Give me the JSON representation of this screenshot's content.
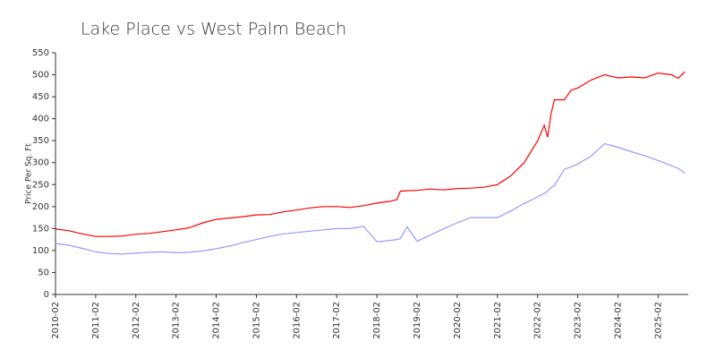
{
  "chart_data": {
    "type": "line",
    "title": "Lake Place vs West Palm Beach",
    "y_label": "Price Per Sq. Ft",
    "x": [
      "2010-02",
      "2010-06",
      "2010-10",
      "2011-02",
      "2011-06",
      "2011-10",
      "2012-02",
      "2012-06",
      "2012-10",
      "2013-02",
      "2013-06",
      "2013-10",
      "2014-02",
      "2014-06",
      "2014-10",
      "2015-02",
      "2015-06",
      "2015-10",
      "2016-02",
      "2016-06",
      "2016-10",
      "2017-02",
      "2017-06",
      "2017-10",
      "2018-02",
      "2018-06",
      "2018-08",
      "2018-09",
      "2018-11",
      "2019-02",
      "2019-06",
      "2019-10",
      "2020-02",
      "2020-06",
      "2020-10",
      "2021-02",
      "2021-06",
      "2021-10",
      "2022-02",
      "2022-04",
      "2022-05",
      "2022-06",
      "2022-07",
      "2022-10",
      "2022-12",
      "2023-02",
      "2023-06",
      "2023-10",
      "2024-02",
      "2024-06",
      "2024-10",
      "2025-02",
      "2025-06",
      "2025-08",
      "2025-10"
    ],
    "series": [
      {
        "color": "#ff0000",
        "values": [
          149,
          145,
          138,
          132,
          132,
          133,
          137,
          139,
          143,
          147,
          152,
          163,
          171,
          174,
          177,
          181,
          182,
          188,
          192,
          197,
          200,
          200,
          198,
          202,
          208,
          212,
          216,
          235,
          236,
          237,
          240,
          238,
          241,
          242,
          244,
          250,
          270,
          300,
          350,
          385,
          358,
          410,
          443,
          443,
          465,
          470,
          488,
          500,
          493,
          495,
          493,
          504,
          500,
          492,
          507
        ]
      },
      {
        "color": "#9999ff",
        "values": [
          116,
          112,
          105,
          97,
          93,
          92,
          94,
          96,
          97,
          95,
          96,
          99,
          104,
          110,
          118,
          125,
          132,
          138,
          141,
          144,
          147,
          150,
          150,
          155,
          120,
          123,
          125,
          127,
          154,
          121,
          135,
          150,
          163,
          175,
          175,
          175,
          190,
          207,
          222,
          230,
          235,
          243,
          248,
          285,
          290,
          297,
          315,
          343,
          335,
          325,
          316,
          305,
          293,
          287,
          276
        ]
      }
    ],
    "xlim": [
      "2010-02",
      "2025-11"
    ],
    "xticks": [
      "2010-02",
      "2011-02",
      "2012-02",
      "2013-02",
      "2014-02",
      "2015-02",
      "2016-02",
      "2017-02",
      "2018-02",
      "2019-02",
      "2020-02",
      "2021-02",
      "2022-02",
      "2023-02",
      "2024-02",
      "2025-02"
    ],
    "ylim": [
      0,
      550
    ],
    "yticks": [
      0,
      50,
      100,
      150,
      200,
      250,
      300,
      350,
      400,
      450,
      500,
      550
    ]
  }
}
